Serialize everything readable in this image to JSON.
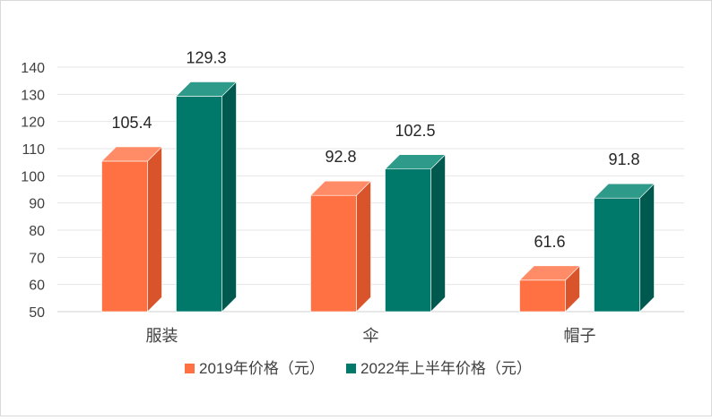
{
  "chart_data": {
    "type": "bar",
    "title": "",
    "xlabel": "",
    "ylabel": "",
    "ylim": [
      50,
      140
    ],
    "yticks": [
      50,
      60,
      70,
      80,
      90,
      100,
      110,
      120,
      130,
      140
    ],
    "categories": [
      "服装",
      "伞",
      "帽子"
    ],
    "series": [
      {
        "name": "2019年价格（元）",
        "values": [
          105.4,
          92.8,
          61.6
        ],
        "color": "#FF7043",
        "side_color": "#D9542B",
        "top_color": "#FF8C66"
      },
      {
        "name": "2022年上半年价格（元）",
        "values": [
          129.3,
          102.5,
          91.8
        ],
        "color": "#00796B",
        "side_color": "#00594E",
        "top_color": "#2E9A8A"
      }
    ],
    "grid": true,
    "legend_position": "bottom",
    "style": "3d-columns"
  }
}
